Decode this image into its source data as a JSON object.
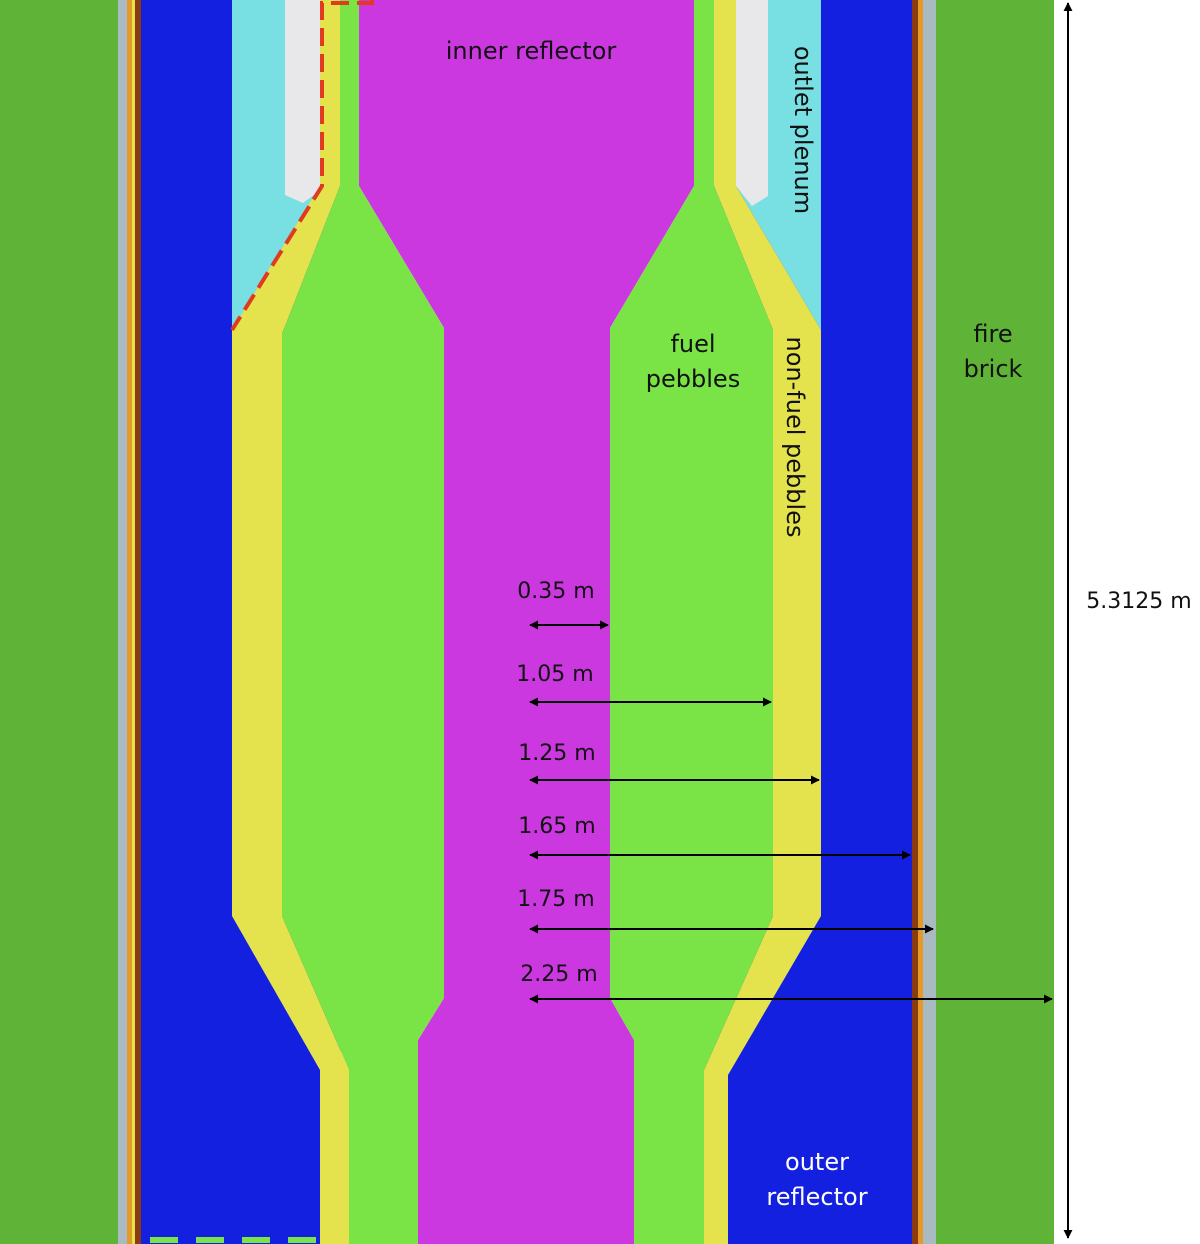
{
  "colors": {
    "fire_brick": "#5fb336",
    "outer_reflector": "#1320e0",
    "inner_reflector": "#cc38e0",
    "fuel_pebbles": "#7ae346",
    "non_fuel_pebbles": "#e4e34d",
    "outlet_plenum": "#78e0e2",
    "plenum_gap": "#e8e8ea",
    "barrel_grey": "#a9bac2",
    "barrel_brown": "#8a3b10",
    "barrel_orange": "#e39a27",
    "dashed_line": "#e03a20",
    "arrow": "#000000"
  },
  "labels": {
    "inner_reflector": "inner reflector",
    "outlet_plenum": "outlet plenum",
    "fuel_line1": "fuel",
    "fuel_line2": "pebbles",
    "non_fuel_pebbles": "non-fuel pebbles",
    "fire_line1": "fire",
    "fire_line2": "brick",
    "outer_line1": "outer",
    "outer_line2": "reflector",
    "height": "5.3125 m"
  },
  "dimensions": [
    {
      "label": "0.35 m",
      "radius_m": 0.35
    },
    {
      "label": "1.05 m",
      "radius_m": 1.05
    },
    {
      "label": "1.25 m",
      "radius_m": 1.25
    },
    {
      "label": "1.65 m",
      "radius_m": 1.65
    },
    {
      "label": "1.75 m",
      "radius_m": 1.75
    },
    {
      "label": "2.25 m",
      "radius_m": 2.25
    }
  ]
}
